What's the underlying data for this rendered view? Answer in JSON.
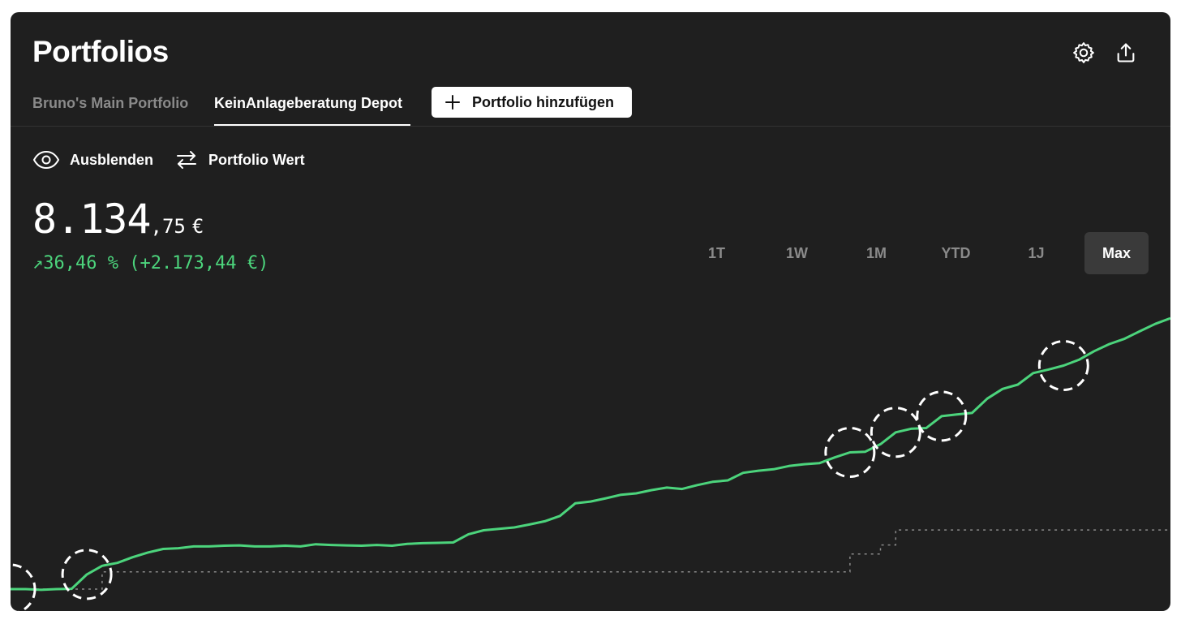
{
  "header": {
    "title": "Portfolios",
    "icons": [
      "gear-icon",
      "share-icon"
    ]
  },
  "tabs": [
    {
      "label": "Bruno's Main Portfolio",
      "active": false
    },
    {
      "label": "KeinAnlageberatung Depot",
      "active": true
    }
  ],
  "add_button": {
    "label": "Portfolio hinzufügen",
    "icon": "plus-icon"
  },
  "toggles": {
    "hide": {
      "label": "Ausblenden",
      "icon": "eye-icon"
    },
    "mode": {
      "label": "Portfolio Wert",
      "icon": "swap-arrows-icon"
    }
  },
  "value": {
    "main": "8.134",
    "cents": ",75",
    "currency": "€",
    "change": "↗36,46 % (+2.173,44 €)"
  },
  "ranges": [
    "1T",
    "1W",
    "1M",
    "YTD",
    "1J",
    "Max"
  ],
  "selected_range": "Max",
  "colors": {
    "background": "#1f1f1f",
    "accent_green": "#4cd47c",
    "text": "#ffffff",
    "muted": "#8a8a8a"
  },
  "chart_data": {
    "type": "line",
    "series": [
      {
        "values": [
          5961,
          5961,
          5959,
          5961,
          5962,
          6002,
          6026,
          6034,
          6050,
          6063,
          6073,
          6075,
          6080,
          6080,
          6082,
          6083,
          6080,
          6080,
          6082,
          6080,
          6086,
          6084,
          6083,
          6082,
          6084,
          6082,
          6087,
          6089,
          6090,
          6091,
          6114,
          6125,
          6129,
          6133,
          6141,
          6150,
          6165,
          6200,
          6205,
          6214,
          6224,
          6228,
          6237,
          6244,
          6240,
          6251,
          6260,
          6264,
          6285,
          6291,
          6295,
          6304,
          6309,
          6312,
          6328,
          6342,
          6344,
          6365,
          6398,
          6408,
          6410,
          6443,
          6448,
          6452,
          6492,
          6519,
          6531,
          6563,
          6573,
          6584,
          6600,
          6624,
          6644,
          6659,
          6680,
          6700,
          6716
        ]
      },
      {
        "values": [
          5961,
          5961,
          5961,
          5961,
          5961,
          5961,
          6009,
          6009,
          6009,
          6009,
          6009,
          6009,
          6009,
          6009,
          6009,
          6009,
          6009,
          6009,
          6009,
          6009,
          6009,
          6009,
          6009,
          6009,
          6009,
          6009,
          6009,
          6009,
          6009,
          6009,
          6009,
          6009,
          6009,
          6009,
          6009,
          6009,
          6009,
          6009,
          6009,
          6009,
          6009,
          6009,
          6009,
          6009,
          6009,
          6009,
          6009,
          6009,
          6009,
          6009,
          6009,
          6009,
          6009,
          6009,
          6009,
          6059,
          6059,
          6084,
          6126,
          6126,
          6126,
          6126,
          6126,
          6126,
          6126,
          6126,
          6126,
          6126,
          6126,
          6126,
          6126,
          6126,
          6126,
          6126,
          6126,
          6126,
          6126
        ]
      }
    ],
    "markers": [
      0,
      5,
      55,
      58,
      61,
      69
    ]
  }
}
